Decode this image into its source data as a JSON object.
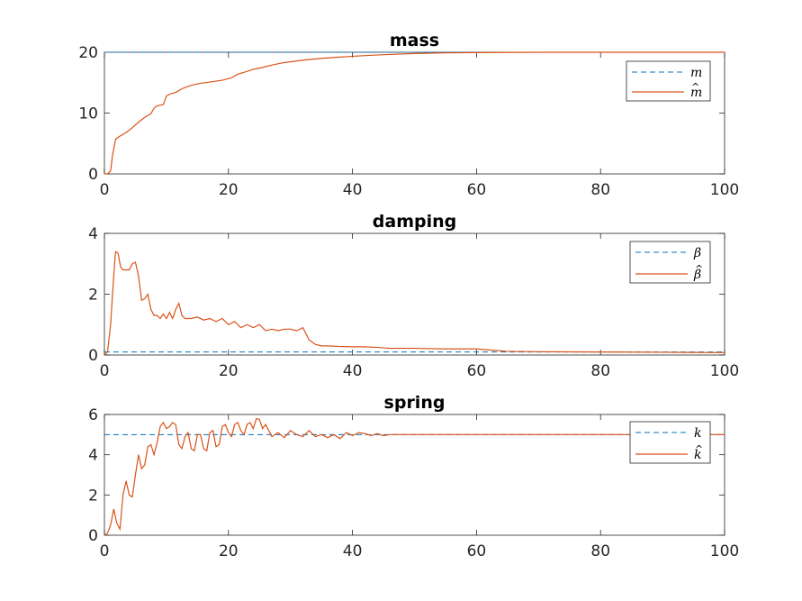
{
  "chart_data": [
    {
      "type": "line",
      "title": "mass",
      "xlim": [
        0,
        100
      ],
      "ylim": [
        0,
        20
      ],
      "xticks": [
        0,
        20,
        40,
        60,
        80,
        100
      ],
      "yticks": [
        0,
        10,
        20
      ],
      "xtick_labels": [
        "0",
        "20",
        "40",
        "60",
        "80",
        "100"
      ],
      "ytick_labels": [
        "0",
        "10",
        "20"
      ],
      "legend_position": "top-right",
      "series": [
        {
          "name": "m",
          "hat": false,
          "style": "dashed",
          "color": "#0072bd",
          "x": [
            0,
            100
          ],
          "y": [
            20,
            20
          ]
        },
        {
          "name": "m",
          "hat": true,
          "style": "solid",
          "color": "#d95319",
          "x": [
            0,
            0.5,
            1,
            1.3,
            1.8,
            2.5,
            3.5,
            4.5,
            5.5,
            6.5,
            7.5,
            8,
            8.5,
            9.5,
            10,
            10.5,
            11.5,
            12.5,
            13.5,
            14.5,
            15.5,
            17,
            19,
            20.5,
            21.5,
            22.5,
            24,
            25.5,
            27,
            29,
            32,
            35,
            38,
            41,
            45,
            50,
            55,
            60,
            70,
            80,
            90,
            100
          ],
          "y": [
            0,
            0,
            0.5,
            3,
            5.7,
            6.2,
            6.8,
            7.6,
            8.5,
            9.3,
            9.9,
            10.8,
            11.2,
            11.4,
            12.8,
            13.1,
            13.4,
            14,
            14.4,
            14.7,
            14.9,
            15.1,
            15.4,
            15.8,
            16.4,
            16.7,
            17.2,
            17.5,
            17.9,
            18.3,
            18.7,
            19,
            19.2,
            19.4,
            19.6,
            19.8,
            19.9,
            19.95,
            20,
            20,
            20,
            20
          ]
        }
      ]
    },
    {
      "type": "line",
      "title": "damping",
      "xlim": [
        0,
        100
      ],
      "ylim": [
        0,
        4
      ],
      "xticks": [
        0,
        20,
        40,
        60,
        80,
        100
      ],
      "yticks": [
        0,
        2,
        4
      ],
      "xtick_labels": [
        "0",
        "20",
        "40",
        "60",
        "80",
        "100"
      ],
      "ytick_labels": [
        "0",
        "2",
        "4"
      ],
      "legend_position": "top-right",
      "series": [
        {
          "name": "β",
          "hat": false,
          "style": "dashed",
          "color": "#0072bd",
          "x": [
            0,
            100
          ],
          "y": [
            0.1,
            0.1
          ]
        },
        {
          "name": "β",
          "hat": true,
          "style": "solid",
          "color": "#d95319",
          "x": [
            0,
            0.5,
            1,
            1.5,
            1.8,
            2.2,
            2.6,
            3,
            3.5,
            4,
            4.5,
            5,
            5.5,
            6,
            6.5,
            7,
            7.5,
            8,
            8.5,
            9,
            9.5,
            10,
            10.5,
            11,
            11.5,
            12,
            12.5,
            13,
            14,
            15,
            16,
            17,
            18,
            19,
            20,
            21,
            22,
            23,
            24,
            25,
            26,
            27,
            28,
            29,
            30,
            31,
            32,
            33,
            34,
            35,
            36,
            38,
            40,
            42,
            44,
            46,
            50,
            55,
            60,
            65,
            70,
            80,
            90,
            100
          ],
          "y": [
            0,
            0.1,
            1,
            2.6,
            3.4,
            3.35,
            2.9,
            2.8,
            2.8,
            2.8,
            3.0,
            3.05,
            2.6,
            1.8,
            1.85,
            2.0,
            1.5,
            1.3,
            1.3,
            1.2,
            1.35,
            1.2,
            1.4,
            1.2,
            1.5,
            1.7,
            1.3,
            1.2,
            1.2,
            1.25,
            1.15,
            1.2,
            1.1,
            1.2,
            1.0,
            1.1,
            0.9,
            1.0,
            0.9,
            1.0,
            0.8,
            0.85,
            0.8,
            0.85,
            0.85,
            0.8,
            0.9,
            0.5,
            0.35,
            0.3,
            0.3,
            0.28,
            0.27,
            0.27,
            0.25,
            0.22,
            0.22,
            0.2,
            0.2,
            0.12,
            0.11,
            0.1,
            0.09,
            0.08
          ]
        }
      ]
    },
    {
      "type": "line",
      "title": "spring",
      "xlim": [
        0,
        100
      ],
      "ylim": [
        0,
        6
      ],
      "xticks": [
        0,
        20,
        40,
        60,
        80,
        100
      ],
      "yticks": [
        0,
        2,
        4,
        6
      ],
      "xtick_labels": [
        "0",
        "20",
        "40",
        "60",
        "80",
        "100"
      ],
      "ytick_labels": [
        "0",
        "2",
        "4",
        "6"
      ],
      "legend_position": "top-right",
      "series": [
        {
          "name": "k",
          "hat": false,
          "style": "dashed",
          "color": "#0072bd",
          "x": [
            0,
            100
          ],
          "y": [
            5,
            5
          ]
        },
        {
          "name": "k",
          "hat": true,
          "style": "solid",
          "color": "#d95319",
          "x": [
            0,
            0.5,
            1,
            1.5,
            2,
            2.5,
            3,
            3.5,
            4,
            4.5,
            5,
            5.5,
            6,
            6.5,
            7,
            7.5,
            8,
            8.5,
            9,
            9.5,
            10,
            10.5,
            11,
            11.5,
            12,
            12.5,
            13,
            13.5,
            14,
            14.5,
            15,
            15.5,
            16,
            16.5,
            17,
            17.5,
            18,
            18.5,
            19,
            19.5,
            20,
            20.5,
            21,
            21.5,
            22,
            22.5,
            23,
            23.5,
            24,
            24.5,
            25,
            25.5,
            26,
            27,
            28,
            29,
            30,
            31,
            32,
            33,
            34,
            35,
            36,
            37,
            38,
            39,
            40,
            41,
            42,
            43,
            44,
            45,
            46,
            48,
            50,
            55,
            60,
            70,
            80,
            90,
            100
          ],
          "y": [
            0,
            0.1,
            0.5,
            1.3,
            0.6,
            0.3,
            2.0,
            2.7,
            2.0,
            1.9,
            3.0,
            4.0,
            3.3,
            3.5,
            4.4,
            4.5,
            4.0,
            4.6,
            5.4,
            5.6,
            5.3,
            5.4,
            5.6,
            5.5,
            4.5,
            4.3,
            4.9,
            5.1,
            4.3,
            4.2,
            5.0,
            5.0,
            4.3,
            4.2,
            5.1,
            5.2,
            4.4,
            4.5,
            5.4,
            5.5,
            5.1,
            4.9,
            5.5,
            5.6,
            5.2,
            5.0,
            5.5,
            5.6,
            5.3,
            5.8,
            5.75,
            5.3,
            5.5,
            4.9,
            5.1,
            4.85,
            5.2,
            5.0,
            4.9,
            5.2,
            4.9,
            5.0,
            4.85,
            5.0,
            4.8,
            5.1,
            4.95,
            5.1,
            5.05,
            4.95,
            5.05,
            4.95,
            5.0,
            5.0,
            5.0,
            5.0,
            5.0,
            5.0,
            5.0,
            5.0,
            5.0
          ]
        }
      ]
    }
  ]
}
